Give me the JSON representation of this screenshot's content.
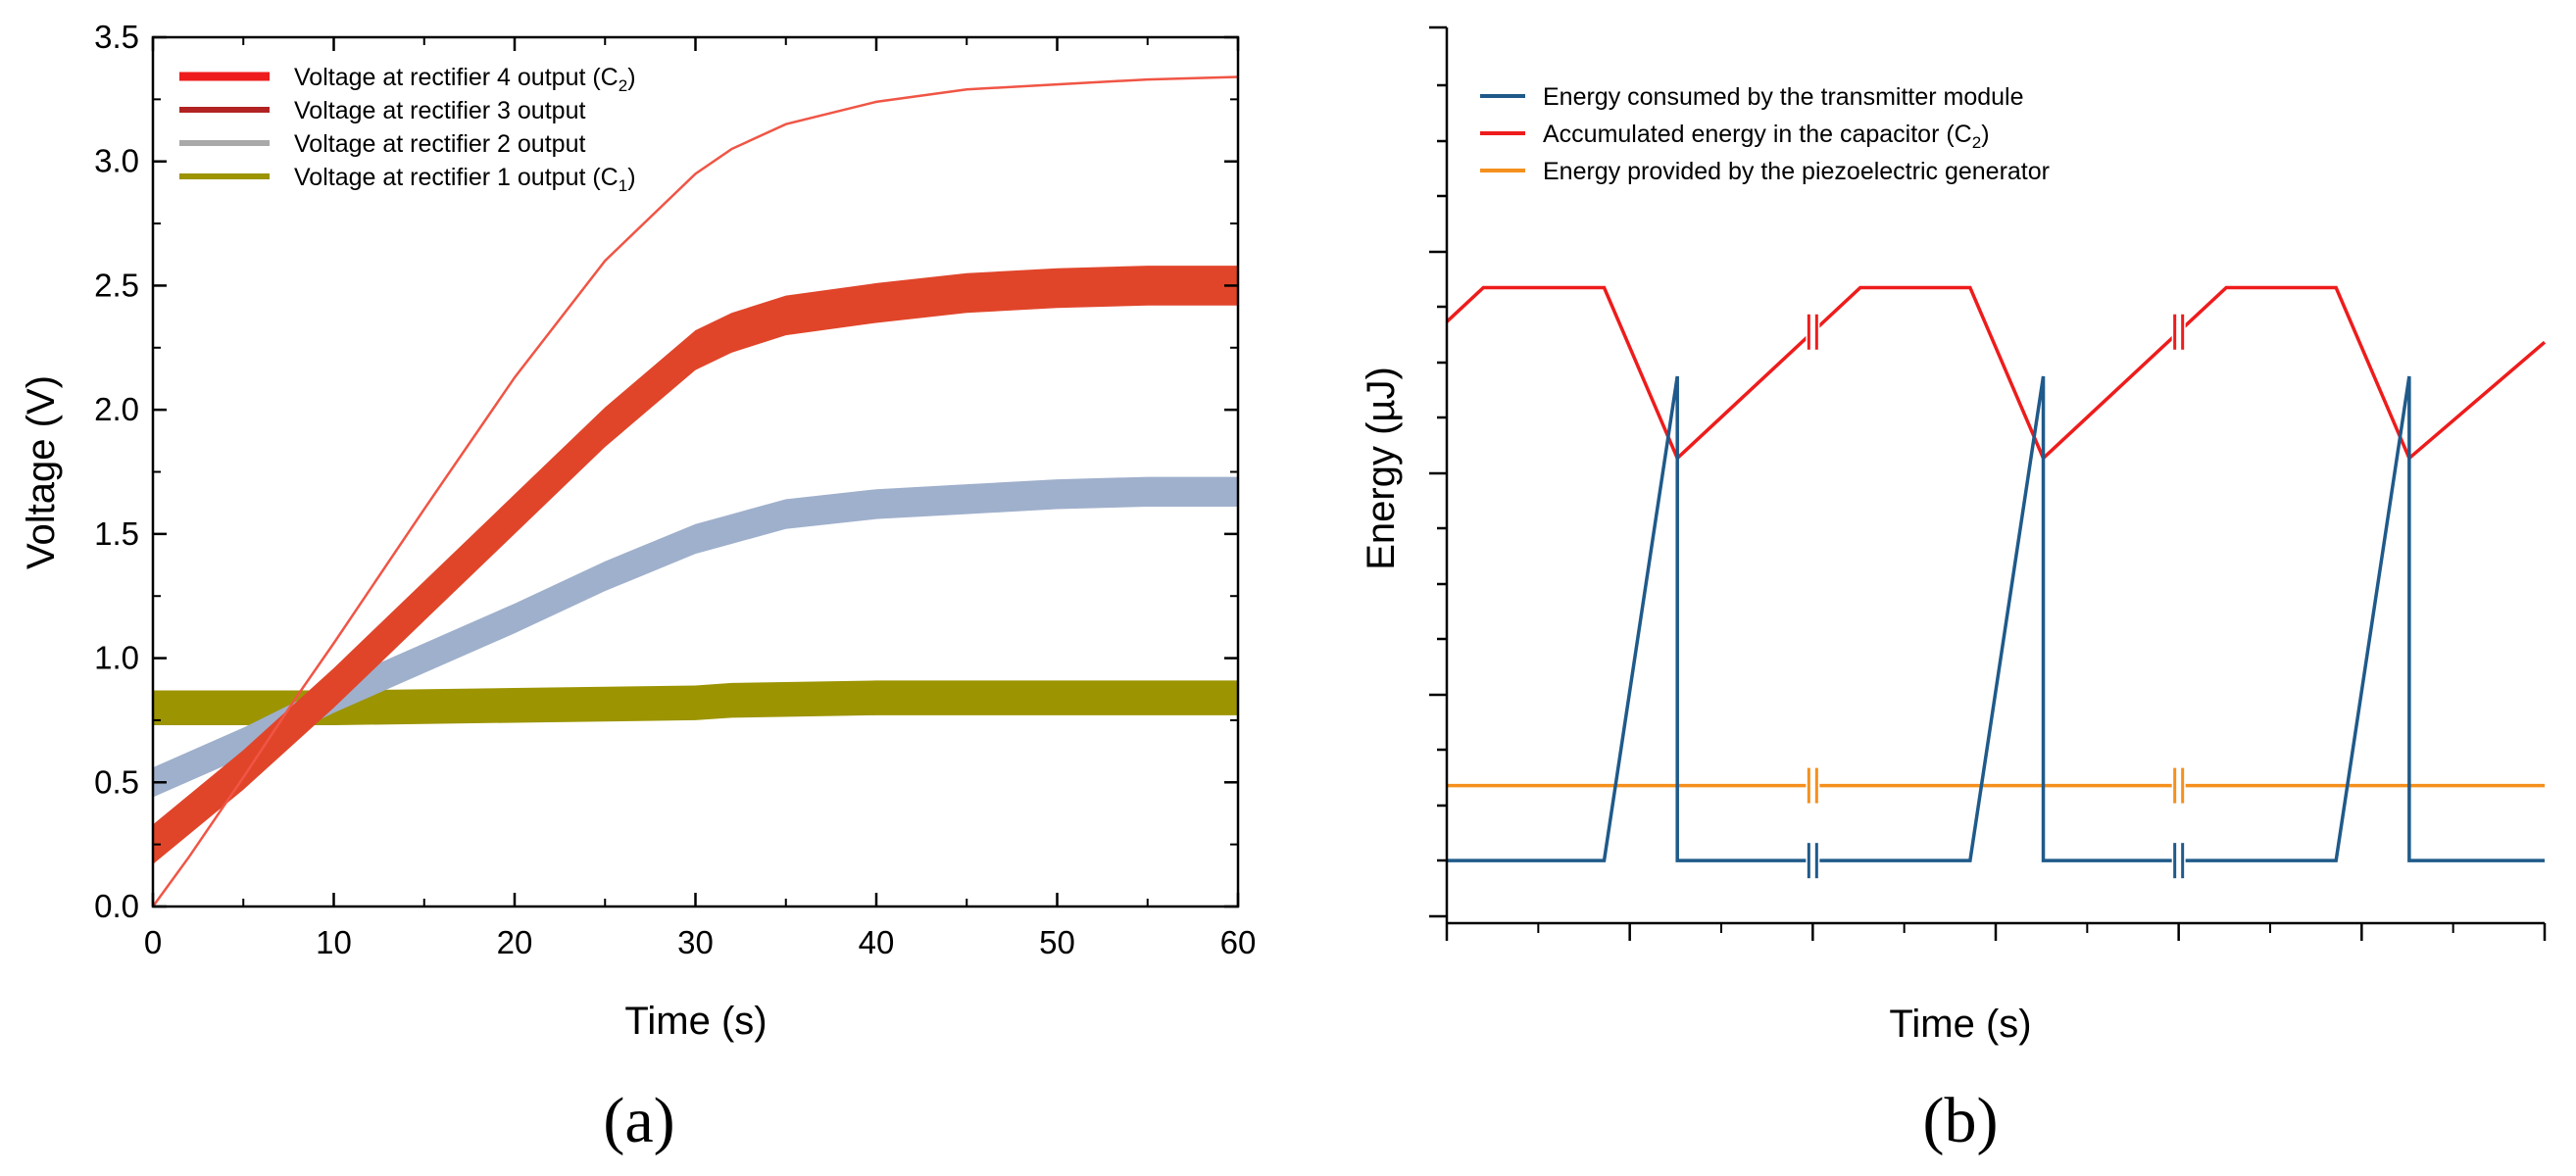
{
  "chart_data": [
    {
      "panel_label": "(a)",
      "type": "line",
      "xlabel": "Time (s)",
      "ylabel": "Voltage (V)",
      "xlim": [
        0,
        60
      ],
      "ylim": [
        0,
        3.5
      ],
      "xticks": [
        0,
        10,
        20,
        30,
        40,
        50,
        60
      ],
      "yticks": [
        0.0,
        0.5,
        1.0,
        1.5,
        2.0,
        2.5,
        3.0,
        3.5
      ],
      "xtick_labels": [
        "0",
        "10",
        "20",
        "30",
        "40",
        "50",
        "60"
      ],
      "ytick_labels": [
        "0.0",
        "0.5",
        "1.0",
        "1.5",
        "2.0",
        "2.5",
        "3.0",
        "3.5"
      ],
      "legend_position": "top-left",
      "series": [
        {
          "name": "Voltage at rectifier 4 output (C2)",
          "legend_text": "Voltage  at rectifier 4 output  (C",
          "legend_sub": "2",
          "legend_tail": ")",
          "color": "#f05545",
          "legend_color": "#ee1c1c",
          "band_halfwidth": 0,
          "x": [
            0,
            2,
            5,
            8,
            10,
            15,
            20,
            25,
            30,
            32,
            35,
            40,
            45,
            50,
            55,
            60
          ],
          "y": [
            0.0,
            0.2,
            0.52,
            0.85,
            1.06,
            1.6,
            2.13,
            2.6,
            2.95,
            3.05,
            3.15,
            3.24,
            3.29,
            3.31,
            3.33,
            3.34
          ]
        },
        {
          "name": "Voltage at rectifier 3 output",
          "legend_text": "Voltage  at rectifier 3 output",
          "color": "#e0452a",
          "legend_color": "#b22222",
          "band_halfwidth": 0.08,
          "x": [
            0,
            5,
            10,
            15,
            20,
            25,
            30,
            32,
            35,
            40,
            45,
            50,
            55,
            60
          ],
          "y": [
            0.25,
            0.55,
            0.88,
            1.23,
            1.58,
            1.93,
            2.24,
            2.31,
            2.38,
            2.43,
            2.47,
            2.49,
            2.5,
            2.5
          ]
        },
        {
          "name": "Voltage at rectifier 2 output",
          "legend_text": "Voltage  at rectifier 2 output",
          "color": "#9fb0cc",
          "legend_color": "#a9a9a9",
          "band_halfwidth": 0.06,
          "x": [
            0,
            5,
            10,
            15,
            20,
            25,
            30,
            32,
            35,
            40,
            45,
            50,
            55,
            60
          ],
          "y": [
            0.5,
            0.66,
            0.84,
            1.0,
            1.16,
            1.33,
            1.48,
            1.52,
            1.58,
            1.62,
            1.64,
            1.66,
            1.67,
            1.67
          ]
        },
        {
          "name": "Voltage at rectifier 1 output (C1)",
          "legend_text": "Voltage  at rectifier 1 output  (C",
          "legend_sub": "1",
          "legend_tail": ")",
          "color": "#9c9400",
          "legend_color": "#9c9400",
          "band_halfwidth": 0.07,
          "x": [
            0,
            10,
            20,
            30,
            32,
            40,
            50,
            60
          ],
          "y": [
            0.8,
            0.8,
            0.81,
            0.82,
            0.83,
            0.84,
            0.84,
            0.84
          ]
        }
      ]
    },
    {
      "panel_label": "(b)",
      "type": "line",
      "xlabel": "Time (s)",
      "ylabel": "Energy (µJ)",
      "xlim": [
        0,
        30
      ],
      "ylim": [
        0,
        100
      ],
      "axis_values": "unlabeled",
      "legend_position": "top-left",
      "break_marks_x": [
        10,
        20
      ],
      "series": [
        {
          "name": "Energy consumed by the transmitter module",
          "legend_text": "Energy consumed by the transmitter module",
          "color": "#1f5a8a",
          "x": [
            0,
            4.3,
            6.3,
            6.3,
            14.3,
            16.3,
            16.3,
            24.3,
            26.3,
            26.3,
            30
          ],
          "y": [
            4,
            4,
            75,
            4,
            4,
            75,
            4,
            4,
            75,
            4,
            4
          ]
        },
        {
          "name": "Accumulated energy in the capacitor (C2)",
          "legend_text": "Accumulated energy in the capacitor (C",
          "legend_sub": "2",
          "legend_tail": ")",
          "color": "#ee1c1c",
          "x": [
            0,
            1,
            4.3,
            6.3,
            11.3,
            14.3,
            16.3,
            21.3,
            24.3,
            26.3,
            30
          ],
          "y": [
            83,
            88,
            88,
            63,
            88,
            88,
            63,
            88,
            88,
            63,
            80
          ]
        },
        {
          "name": "Energy provided by the piezoelectric generator",
          "legend_text": "Energy provided by the piezoelectric generator",
          "color": "#f5901e",
          "x": [
            0,
            30
          ],
          "y": [
            15,
            15
          ]
        }
      ]
    }
  ]
}
